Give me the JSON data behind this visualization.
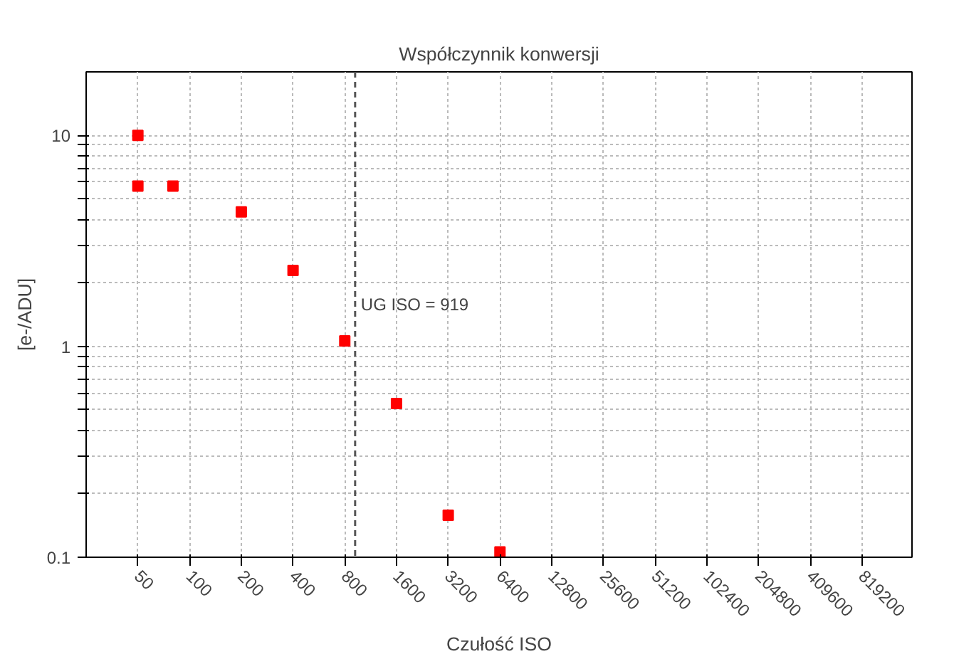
{
  "chart_data": {
    "type": "scatter",
    "title": "Współczynnik konwersji",
    "xlabel": "Czułość ISO",
    "ylabel": "[e-/ADU]",
    "log": "xy",
    "grid": true,
    "marker": "square",
    "xlim": [
      25,
      1600000
    ],
    "ylim": [
      0.1,
      20
    ],
    "xticks": [
      50,
      100,
      200,
      400,
      800,
      1600,
      3200,
      6400,
      12800,
      25600,
      51200,
      102400,
      204800,
      409600,
      819200
    ],
    "yticks": [
      0.1,
      {
        "value": 0.2,
        "label": null
      },
      {
        "value": 0.3,
        "label": null
      },
      {
        "value": 0.4,
        "label": null
      },
      {
        "value": 0.5,
        "label": null
      },
      {
        "value": 0.6,
        "label": null
      },
      {
        "value": 0.7,
        "label": null
      },
      {
        "value": 0.8,
        "label": null
      },
      {
        "value": 0.9,
        "label": null
      },
      1,
      {
        "value": 2,
        "label": null
      },
      {
        "value": 3,
        "label": null
      },
      {
        "value": 4,
        "label": null
      },
      {
        "value": 5,
        "label": null
      },
      {
        "value": 6,
        "label": null
      },
      {
        "value": 7,
        "label": null
      },
      {
        "value": 8,
        "label": null
      },
      {
        "value": 9,
        "label": null
      },
      10
    ],
    "series": [
      {
        "color": "#ff0000",
        "x": [
          50,
          50,
          80,
          200,
          400,
          800,
          1600,
          3200,
          6400
        ],
        "values": [
          10,
          5.75,
          5.75,
          4.34,
          2.29,
          1.06,
          0.535,
          0.158,
          0.106
        ]
      }
    ],
    "ref_lines": [
      {
        "axis": "x",
        "value": 919,
        "label": "UG ISO = 919",
        "color": "#555555",
        "line_style": "dashed"
      }
    ]
  }
}
